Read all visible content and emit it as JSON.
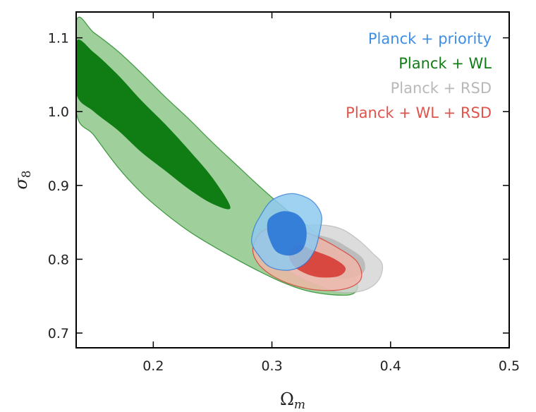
{
  "chart_data": {
    "type": "contour",
    "xlabel": "Ωm",
    "ylabel": "σ8",
    "xlim": [
      0.135,
      0.5
    ],
    "ylim": [
      0.68,
      1.135
    ],
    "xticks": [
      0.2,
      0.3,
      0.4,
      0.5
    ],
    "yticks": [
      0.7,
      0.8,
      0.9,
      1.0,
      1.1
    ],
    "xtick_labels": [
      "0.2",
      "0.3",
      "0.4",
      "0.5"
    ],
    "ytick_labels": [
      "0.7",
      "0.8",
      "0.9",
      "1.0",
      "1.1"
    ],
    "grid": false,
    "legend_position": "top-right",
    "series": [
      {
        "name": "Planck + WL",
        "outer_color": "#9fd09b",
        "inner_color": "#0f7c14",
        "outer": [
          [
            0.135,
            1.122
          ],
          [
            0.15,
            1.107
          ],
          [
            0.17,
            1.082
          ],
          [
            0.19,
            1.052
          ],
          [
            0.21,
            1.02
          ],
          [
            0.23,
            0.99
          ],
          [
            0.25,
            0.958
          ],
          [
            0.27,
            0.928
          ],
          [
            0.29,
            0.898
          ],
          [
            0.31,
            0.87
          ],
          [
            0.33,
            0.845
          ],
          [
            0.35,
            0.818
          ],
          [
            0.36,
            0.796
          ],
          [
            0.37,
            0.774
          ],
          [
            0.372,
            0.76
          ],
          [
            0.366,
            0.752
          ],
          [
            0.35,
            0.752
          ],
          [
            0.33,
            0.757
          ],
          [
            0.31,
            0.768
          ],
          [
            0.29,
            0.783
          ],
          [
            0.27,
            0.8
          ],
          [
            0.25,
            0.818
          ],
          [
            0.23,
            0.838
          ],
          [
            0.21,
            0.862
          ],
          [
            0.19,
            0.89
          ],
          [
            0.17,
            0.925
          ],
          [
            0.15,
            0.968
          ],
          [
            0.135,
            1.0
          ]
        ],
        "inner": [
          [
            0.135,
            1.095
          ],
          [
            0.15,
            1.08
          ],
          [
            0.17,
            1.05
          ],
          [
            0.19,
            1.015
          ],
          [
            0.21,
            0.983
          ],
          [
            0.23,
            0.948
          ],
          [
            0.25,
            0.91
          ],
          [
            0.265,
            0.87
          ],
          [
            0.25,
            0.875
          ],
          [
            0.23,
            0.895
          ],
          [
            0.21,
            0.92
          ],
          [
            0.19,
            0.945
          ],
          [
            0.17,
            0.975
          ],
          [
            0.15,
            1.0
          ],
          [
            0.135,
            1.025
          ]
        ]
      },
      {
        "name": "Planck + RSD",
        "outer_color": "#d3d3d3",
        "inner_color": "#b4b4b4",
        "outer": [
          [
            0.305,
            0.836
          ],
          [
            0.325,
            0.845
          ],
          [
            0.345,
            0.846
          ],
          [
            0.36,
            0.84
          ],
          [
            0.373,
            0.826
          ],
          [
            0.385,
            0.808
          ],
          [
            0.393,
            0.793
          ],
          [
            0.39,
            0.772
          ],
          [
            0.378,
            0.758
          ],
          [
            0.358,
            0.755
          ],
          [
            0.34,
            0.764
          ],
          [
            0.322,
            0.777
          ],
          [
            0.308,
            0.792
          ],
          [
            0.3,
            0.812
          ]
        ],
        "inner": [
          [
            0.315,
            0.826
          ],
          [
            0.333,
            0.833
          ],
          [
            0.35,
            0.828
          ],
          [
            0.365,
            0.815
          ],
          [
            0.377,
            0.8
          ],
          [
            0.377,
            0.782
          ],
          [
            0.363,
            0.774
          ],
          [
            0.345,
            0.777
          ],
          [
            0.328,
            0.787
          ],
          [
            0.317,
            0.801
          ],
          [
            0.311,
            0.814
          ]
        ]
      },
      {
        "name": "Planck + WL + RSD",
        "outer_color": "#f3b5a7",
        "inner_color": "#d52d25",
        "outer": [
          [
            0.292,
            0.838
          ],
          [
            0.312,
            0.843
          ],
          [
            0.334,
            0.833
          ],
          [
            0.356,
            0.815
          ],
          [
            0.372,
            0.796
          ],
          [
            0.375,
            0.773
          ],
          [
            0.362,
            0.76
          ],
          [
            0.34,
            0.758
          ],
          [
            0.318,
            0.765
          ],
          [
            0.3,
            0.778
          ],
          [
            0.288,
            0.795
          ],
          [
            0.284,
            0.815
          ]
        ],
        "inner": [
          [
            0.322,
            0.82
          ],
          [
            0.335,
            0.812
          ],
          [
            0.352,
            0.801
          ],
          [
            0.362,
            0.788
          ],
          [
            0.356,
            0.777
          ],
          [
            0.338,
            0.776
          ],
          [
            0.322,
            0.786
          ],
          [
            0.315,
            0.8
          ],
          [
            0.316,
            0.812
          ]
        ]
      },
      {
        "name": "Planck + priority",
        "outer_color": "#8ec9ee",
        "inner_color": "#2572d6",
        "outer": [
          [
            0.29,
            0.858
          ],
          [
            0.3,
            0.88
          ],
          [
            0.316,
            0.889
          ],
          [
            0.33,
            0.883
          ],
          [
            0.338,
            0.872
          ],
          [
            0.342,
            0.857
          ],
          [
            0.34,
            0.835
          ],
          [
            0.336,
            0.812
          ],
          [
            0.327,
            0.793
          ],
          [
            0.313,
            0.785
          ],
          [
            0.298,
            0.79
          ],
          [
            0.289,
            0.805
          ],
          [
            0.283,
            0.822
          ],
          [
            0.285,
            0.842
          ]
        ],
        "inner": [
          [
            0.298,
            0.856
          ],
          [
            0.309,
            0.865
          ],
          [
            0.321,
            0.861
          ],
          [
            0.328,
            0.847
          ],
          [
            0.329,
            0.828
          ],
          [
            0.325,
            0.812
          ],
          [
            0.315,
            0.805
          ],
          [
            0.304,
            0.81
          ],
          [
            0.298,
            0.827
          ],
          [
            0.296,
            0.842
          ]
        ]
      }
    ]
  }
}
